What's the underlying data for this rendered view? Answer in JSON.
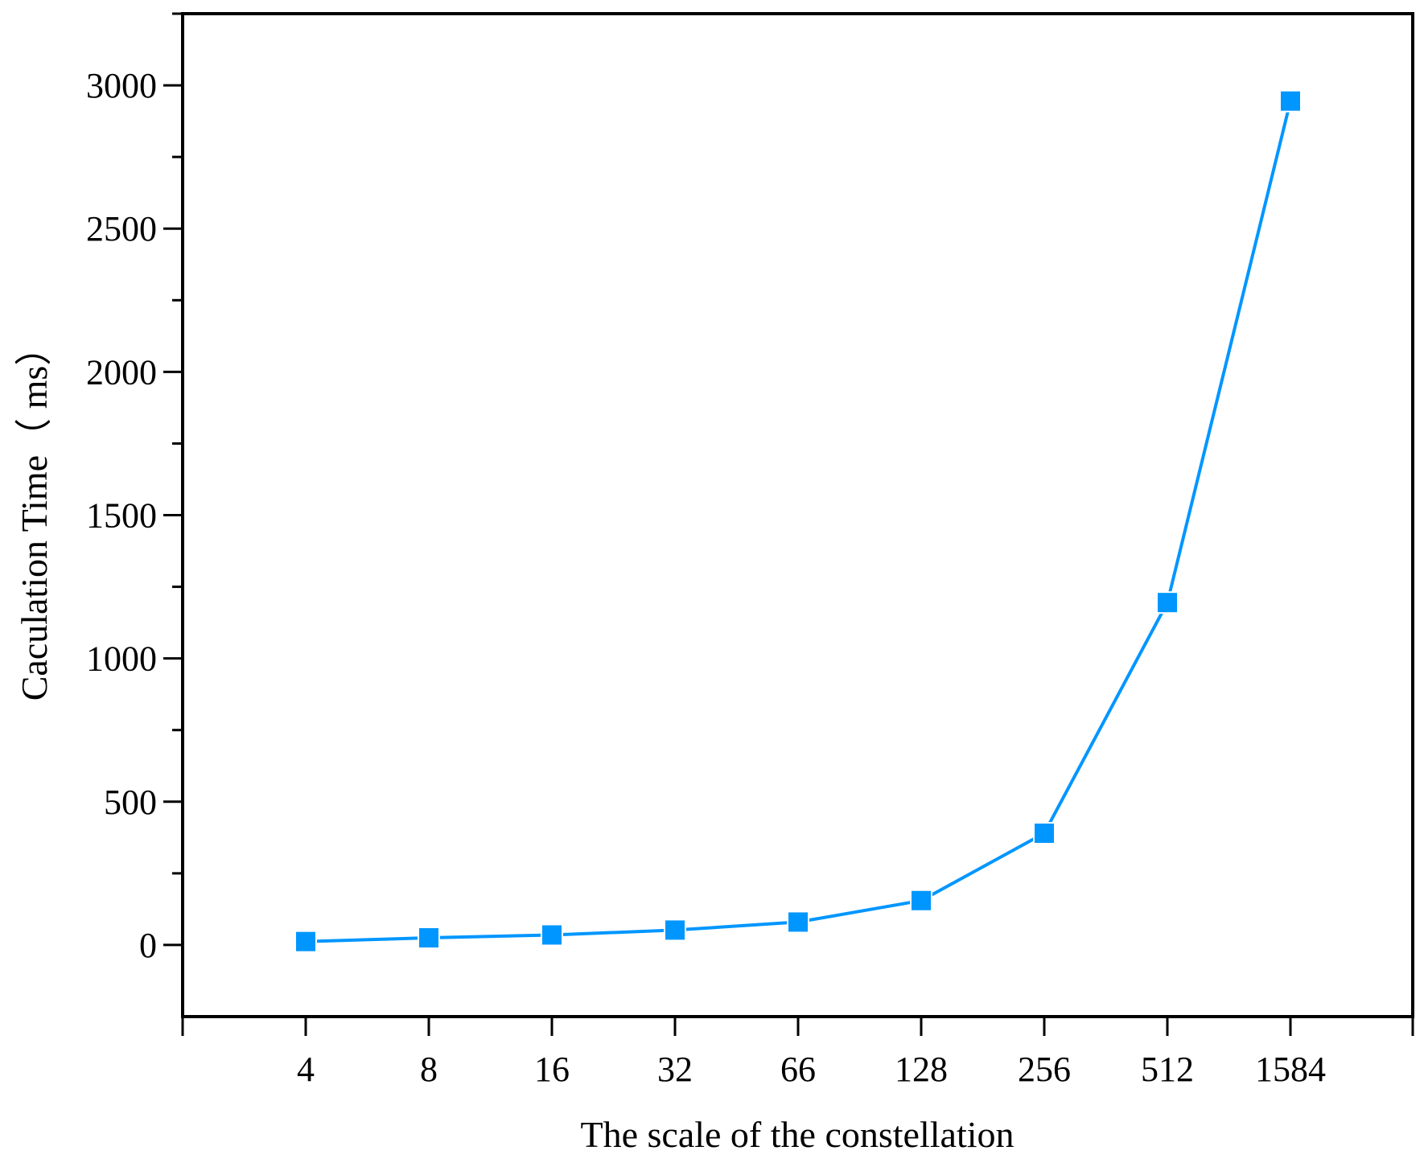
{
  "chart_data": {
    "type": "line",
    "title": "",
    "xlabel": "The scale of the constellation",
    "ylabel": "Caculation Time（ ms）",
    "categories": [
      "4",
      "8",
      "16",
      "32",
      "66",
      "128",
      "256",
      "512",
      "1584"
    ],
    "series": [
      {
        "values": [
          12,
          25,
          35,
          52,
          80,
          155,
          390,
          1195,
          2945
        ],
        "color": "#0096FF",
        "marker": "square"
      }
    ],
    "ylim": [
      -250,
      3250
    ],
    "yticks": [
      0,
      500,
      1000,
      1500,
      2000,
      2500,
      3000
    ],
    "y_minor_step": 250,
    "grid": false,
    "legend": "none"
  }
}
